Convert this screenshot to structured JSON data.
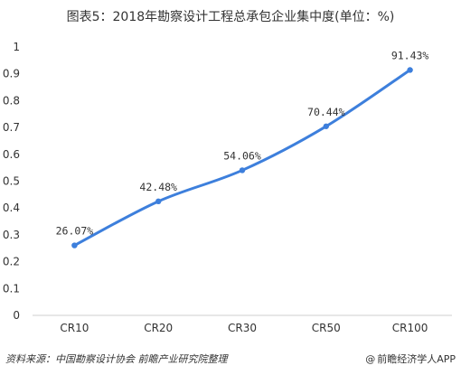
{
  "title": "图表5：2018年勘察设计工程总承包企业集中度(单位：%)",
  "footer": {
    "source": "资料来源：中国勘察设计协会 前瞻产业研究院整理",
    "brand": "前瞻经济学人APP",
    "brand_icon": "at-sign-icon"
  },
  "chart_data": {
    "type": "line",
    "title": "图表5：2018年勘察设计工程总承包企业集中度(单位：%)",
    "xlabel": "",
    "ylabel": "",
    "categories": [
      "CR10",
      "CR20",
      "CR30",
      "CR50",
      "CR100"
    ],
    "series": [
      {
        "values": [
          0.2607,
          0.4248,
          0.5406,
          0.7044,
          0.9143
        ],
        "labels": [
          "26.07%",
          "42.48%",
          "54.06%",
          "70.44%",
          "91.43%"
        ],
        "color": "#3d7fdc"
      }
    ],
    "ylim": [
      0,
      1
    ],
    "yticks": [
      "0",
      "0.1",
      "0.2",
      "0.3",
      "0.4",
      "0.5",
      "0.6",
      "0.7",
      "0.8",
      "0.9",
      "1"
    ],
    "grid": false,
    "legend": "none"
  }
}
